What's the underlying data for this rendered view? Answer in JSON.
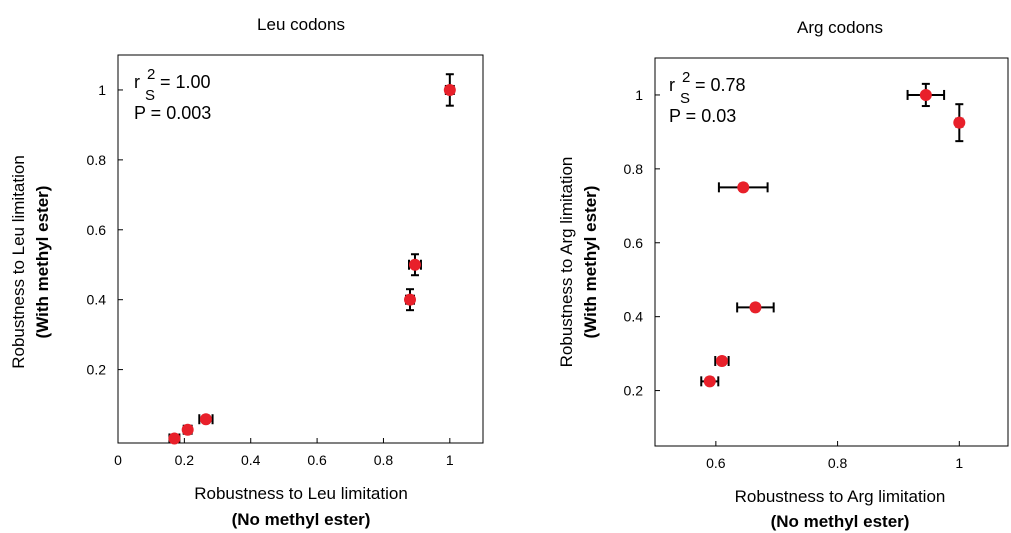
{
  "chart_data": [
    {
      "type": "scatter",
      "title": "Leu codons",
      "xlabel": "Robustness to Leu limitation",
      "xlabel_sub": "(No methyl ester)",
      "ylabel": "Robustness to Leu limitation",
      "ylabel_sub": "(With methyl ester)",
      "xlim": [
        0,
        1.1
      ],
      "ylim": [
        -0.01,
        1.1
      ],
      "xticks": [
        0,
        0.2,
        0.4,
        0.6,
        0.8,
        1
      ],
      "xtick_labels": [
        "0",
        "0.2",
        "0.4",
        "0.6",
        "0.8",
        "1"
      ],
      "yticks": [
        0.2,
        0.4,
        0.6,
        0.8,
        1
      ],
      "ytick_labels": [
        "0.2",
        "0.4",
        "0.6",
        "0.8",
        "1"
      ],
      "stats": {
        "r": "r",
        "sub": "S",
        "sup": "2",
        "r2_value": "= 1.00",
        "p_text": "P = 0.003"
      },
      "points": [
        {
          "x": 0.17,
          "y": 0.003,
          "xerr": 0.015,
          "yerr": 0.01
        },
        {
          "x": 0.21,
          "y": 0.028,
          "xerr": 0.012,
          "yerr": 0.01
        },
        {
          "x": 0.265,
          "y": 0.058,
          "xerr": 0.02,
          "yerr": 0.01
        },
        {
          "x": 0.88,
          "y": 0.4,
          "xerr": 0.012,
          "yerr": 0.03
        },
        {
          "x": 0.895,
          "y": 0.5,
          "xerr": 0.018,
          "yerr": 0.03
        },
        {
          "x": 1.0,
          "y": 1.0,
          "xerr": 0.012,
          "yerr": 0.045
        }
      ],
      "marker_color": "#e8202a",
      "error_color": "#000000"
    },
    {
      "type": "scatter",
      "title": "Arg codons",
      "xlabel": "Robustness to Arg limitation",
      "xlabel_sub": "(No methyl ester)",
      "ylabel": "Robustness to Arg limitation",
      "ylabel_sub": "(With methyl ester)",
      "xlim": [
        0.5,
        1.08
      ],
      "ylim": [
        0.05,
        1.1
      ],
      "xticks": [
        0.6,
        0.8,
        1
      ],
      "xtick_labels": [
        "0.6",
        "0.8",
        "1"
      ],
      "yticks": [
        0.2,
        0.4,
        0.6,
        0.8,
        1
      ],
      "ytick_labels": [
        "0.2",
        "0.4",
        "0.6",
        "0.8",
        "1"
      ],
      "stats": {
        "r": "r",
        "sub": "S",
        "sup": "2",
        "r2_value": "= 0.78",
        "p_text": "P = 0.03"
      },
      "points": [
        {
          "x": 0.59,
          "y": 0.225,
          "xerr": 0.014,
          "yerr": 0.01
        },
        {
          "x": 0.61,
          "y": 0.28,
          "xerr": 0.011,
          "yerr": 0.01
        },
        {
          "x": 0.665,
          "y": 0.425,
          "xerr": 0.03,
          "yerr": 0.01
        },
        {
          "x": 0.645,
          "y": 0.75,
          "xerr": 0.04,
          "yerr": 0.01
        },
        {
          "x": 0.945,
          "y": 1.0,
          "xerr": 0.03,
          "yerr": 0.03
        },
        {
          "x": 1.0,
          "y": 0.925,
          "xerr": 0.005,
          "yerr": 0.05
        }
      ],
      "marker_color": "#e8202a",
      "error_color": "#000000"
    }
  ]
}
